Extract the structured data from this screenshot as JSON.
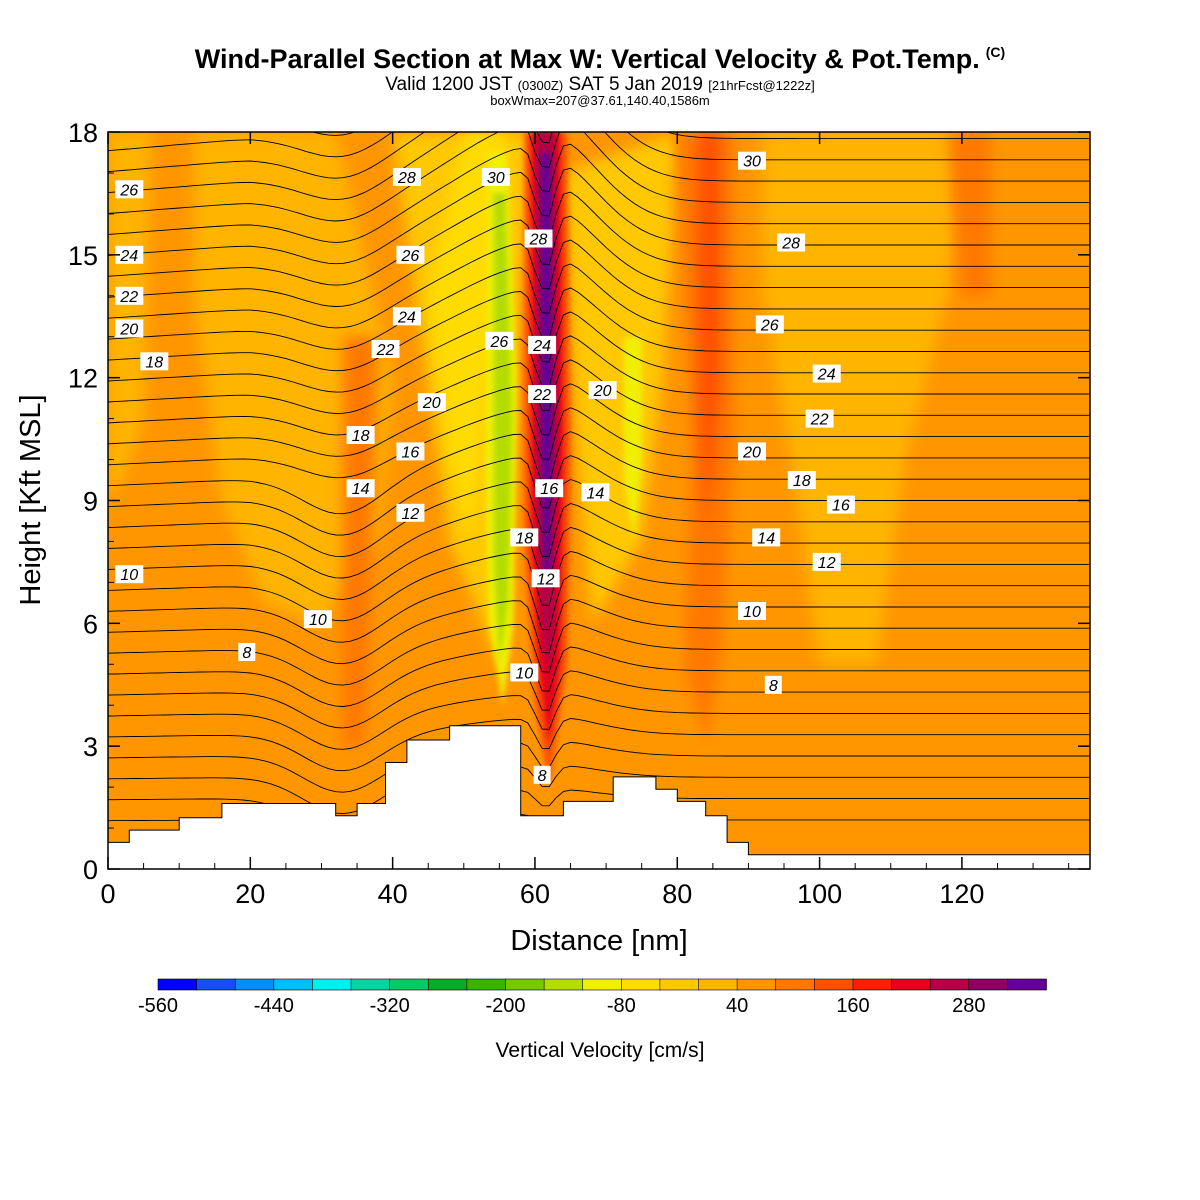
{
  "header": {
    "title": "Wind-Parallel Section at Max W: Vertical Velocity & Pot.Temp.",
    "copyright": "(C)",
    "valid_prefix": "Valid 1200 JST",
    "valid_utc": "(0300Z)",
    "valid_date": "SAT 5 Jan 2019",
    "forecast": "[21hrFcst@1222z]",
    "boxwmax": "boxWmax=207@37.61,140.40,1586m"
  },
  "chart_data": {
    "type": "heatmap",
    "xlabel": "Distance [nm]",
    "ylabel": "Height [Kft MSL]",
    "xlim": [
      0,
      138
    ],
    "ylim": [
      0,
      18
    ],
    "x_ticks": [
      0,
      20,
      40,
      60,
      80,
      100,
      120
    ],
    "y_ticks": [
      0,
      3,
      6,
      9,
      12,
      15,
      18
    ],
    "grid": false,
    "colorbar": {
      "label": "Vertical Velocity [cm/s]",
      "tick_labels": [
        -560,
        -440,
        -320,
        -200,
        -80,
        40,
        160,
        280
      ],
      "colors": [
        "#0000ff",
        "#1450f0",
        "#0a8cf0",
        "#00bff5",
        "#00f0f0",
        "#0ad2a0",
        "#0ac864",
        "#0aaa28",
        "#36b400",
        "#78c800",
        "#b4dc00",
        "#f0f000",
        "#ffdc00",
        "#ffc800",
        "#ffb400",
        "#ff9600",
        "#ff7800",
        "#ff5000",
        "#ff1e00",
        "#e6001e",
        "#b40046",
        "#8c0064",
        "#640096"
      ]
    },
    "vertical_velocity_features": [
      {
        "kind": "updraft",
        "x": 61,
        "y_range": [
          1.5,
          18
        ],
        "peak_cm_s": 300
      },
      {
        "kind": "downdraft",
        "x": 55,
        "y_range": [
          4,
          16
        ],
        "peak_cm_s": -220
      },
      {
        "kind": "downdraft",
        "x": 74,
        "y_range": [
          8,
          13
        ],
        "peak_cm_s": -140
      },
      {
        "kind": "updraft",
        "x": 84,
        "y_range": [
          4,
          18
        ],
        "peak_cm_s": 120
      }
    ],
    "terrain": [
      [
        0,
        0.65
      ],
      [
        3,
        0.65
      ],
      [
        3,
        0.95
      ],
      [
        10,
        0.95
      ],
      [
        10,
        1.25
      ],
      [
        16,
        1.25
      ],
      [
        16,
        1.6
      ],
      [
        32,
        1.6
      ],
      [
        32,
        1.3
      ],
      [
        35,
        1.3
      ],
      [
        35,
        1.6
      ],
      [
        39,
        1.6
      ],
      [
        39,
        2.6
      ],
      [
        42,
        2.6
      ],
      [
        42,
        3.15
      ],
      [
        48,
        3.15
      ],
      [
        48,
        3.5
      ],
      [
        58,
        3.5
      ],
      [
        58,
        1.3
      ],
      [
        64,
        1.3
      ],
      [
        64,
        1.65
      ],
      [
        71,
        1.65
      ],
      [
        71,
        2.25
      ],
      [
        77,
        2.25
      ],
      [
        77,
        1.95
      ],
      [
        80,
        1.95
      ],
      [
        80,
        1.65
      ],
      [
        84,
        1.65
      ],
      [
        84,
        1.3
      ],
      [
        87,
        1.3
      ],
      [
        87,
        0.65
      ],
      [
        90,
        0.65
      ],
      [
        90,
        0.35
      ],
      [
        138,
        0.35
      ]
    ],
    "theta_contour_labels": [
      {
        "text": "26",
        "x": 3,
        "y": 16.6
      },
      {
        "text": "24",
        "x": 3,
        "y": 15.0
      },
      {
        "text": "22",
        "x": 3,
        "y": 14.0
      },
      {
        "text": "20",
        "x": 3,
        "y": 13.2
      },
      {
        "text": "18",
        "x": 6.5,
        "y": 12.4
      },
      {
        "text": "10",
        "x": 3,
        "y": 7.2
      },
      {
        "text": "8",
        "x": 19.5,
        "y": 5.3
      },
      {
        "text": "10",
        "x": 29.5,
        "y": 6.1
      },
      {
        "text": "14",
        "x": 35.5,
        "y": 9.3
      },
      {
        "text": "18",
        "x": 35.5,
        "y": 10.6
      },
      {
        "text": "22",
        "x": 39,
        "y": 12.7
      },
      {
        "text": "28",
        "x": 42,
        "y": 16.9
      },
      {
        "text": "26",
        "x": 42.5,
        "y": 15.0
      },
      {
        "text": "24",
        "x": 42,
        "y": 13.5
      },
      {
        "text": "20",
        "x": 45.5,
        "y": 11.4
      },
      {
        "text": "16",
        "x": 42.5,
        "y": 10.2
      },
      {
        "text": "12",
        "x": 42.5,
        "y": 8.7
      },
      {
        "text": "30",
        "x": 54.5,
        "y": 16.9
      },
      {
        "text": "26",
        "x": 55,
        "y": 12.9
      },
      {
        "text": "28",
        "x": 60.5,
        "y": 15.4
      },
      {
        "text": "24",
        "x": 61,
        "y": 12.8
      },
      {
        "text": "22",
        "x": 61,
        "y": 11.6
      },
      {
        "text": "16",
        "x": 62,
        "y": 9.3
      },
      {
        "text": "18",
        "x": 58.5,
        "y": 8.1
      },
      {
        "text": "12",
        "x": 61.5,
        "y": 7.1
      },
      {
        "text": "10",
        "x": 58.5,
        "y": 4.8
      },
      {
        "text": "8",
        "x": 61,
        "y": 2.3
      },
      {
        "text": "20",
        "x": 69.5,
        "y": 11.7
      },
      {
        "text": "14",
        "x": 68.5,
        "y": 9.2
      },
      {
        "text": "30",
        "x": 90.5,
        "y": 17.3
      },
      {
        "text": "28",
        "x": 96,
        "y": 15.3
      },
      {
        "text": "26",
        "x": 93,
        "y": 13.3
      },
      {
        "text": "24",
        "x": 101,
        "y": 12.1
      },
      {
        "text": "22",
        "x": 100,
        "y": 11.0
      },
      {
        "text": "20",
        "x": 90.5,
        "y": 10.2
      },
      {
        "text": "18",
        "x": 97.5,
        "y": 9.5
      },
      {
        "text": "16",
        "x": 103,
        "y": 8.9
      },
      {
        "text": "14",
        "x": 92.5,
        "y": 8.1
      },
      {
        "text": "12",
        "x": 101,
        "y": 7.5
      },
      {
        "text": "10",
        "x": 90.5,
        "y": 6.3
      },
      {
        "text": "8",
        "x": 93.5,
        "y": 4.5
      }
    ]
  }
}
